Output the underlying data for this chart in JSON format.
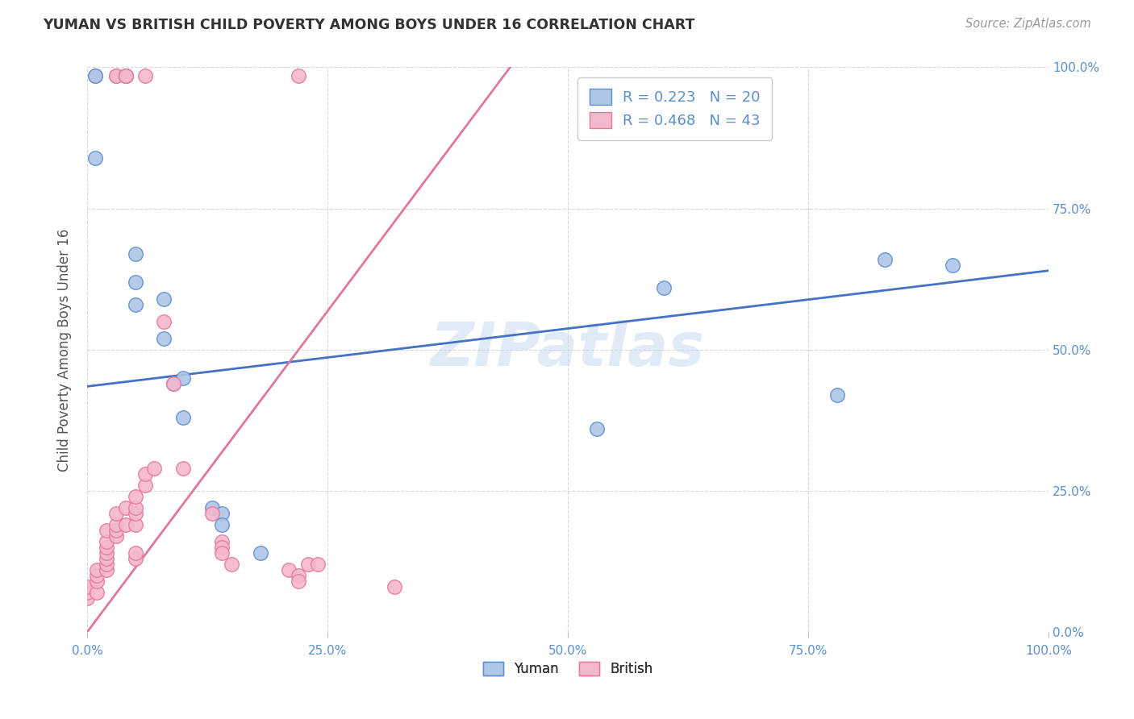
{
  "title": "YUMAN VS BRITISH CHILD POVERTY AMONG BOYS UNDER 16 CORRELATION CHART",
  "source": "Source: ZipAtlas.com",
  "ylabel": "Child Poverty Among Boys Under 16",
  "watermark": "ZIPatlas",
  "yuman_color": "#aec6e8",
  "british_color": "#f4b8cc",
  "yuman_edge_color": "#5b8fcc",
  "british_edge_color": "#e87898",
  "yuman_line_color": "#4472c4",
  "british_line_color": "#e07898",
  "yuman_R": 0.223,
  "yuman_N": 20,
  "british_R": 0.468,
  "british_N": 43,
  "title_color": "#333333",
  "source_color": "#999999",
  "axis_label_color": "#555555",
  "tick_color": "#5b8fcc",
  "grid_color": "#d8d8d8",
  "background_color": "#ffffff",
  "xmin": 0.0,
  "xmax": 1.0,
  "ymin": 0.0,
  "ymax": 1.0,
  "yuman_x": [
    0.008,
    0.05,
    0.05,
    0.05,
    0.08,
    0.08,
    0.09,
    0.1,
    0.1,
    0.13,
    0.14,
    0.14,
    0.18,
    0.53,
    0.6,
    0.78,
    0.83,
    0.9
  ],
  "yuman_y": [
    0.84,
    0.67,
    0.62,
    0.58,
    0.59,
    0.52,
    0.44,
    0.45,
    0.38,
    0.22,
    0.21,
    0.19,
    0.14,
    0.36,
    0.61,
    0.42,
    0.66,
    0.65
  ],
  "british_x": [
    0.0,
    0.0,
    0.0,
    0.01,
    0.01,
    0.01,
    0.01,
    0.02,
    0.02,
    0.02,
    0.02,
    0.02,
    0.02,
    0.02,
    0.03,
    0.03,
    0.03,
    0.03,
    0.04,
    0.04,
    0.05,
    0.05,
    0.05,
    0.05,
    0.05,
    0.05,
    0.06,
    0.06,
    0.07,
    0.08,
    0.09,
    0.1,
    0.13,
    0.14,
    0.14,
    0.14,
    0.15,
    0.21,
    0.22,
    0.22,
    0.23,
    0.24,
    0.32
  ],
  "british_y": [
    0.06,
    0.07,
    0.08,
    0.07,
    0.09,
    0.1,
    0.11,
    0.11,
    0.12,
    0.13,
    0.14,
    0.15,
    0.16,
    0.18,
    0.17,
    0.18,
    0.19,
    0.21,
    0.19,
    0.22,
    0.13,
    0.14,
    0.19,
    0.21,
    0.22,
    0.24,
    0.26,
    0.28,
    0.29,
    0.55,
    0.44,
    0.29,
    0.21,
    0.16,
    0.15,
    0.14,
    0.12,
    0.11,
    0.1,
    0.09,
    0.12,
    0.12,
    0.08
  ],
  "british_top_x": [
    0.008,
    0.03,
    0.03,
    0.04,
    0.04,
    0.04,
    0.04,
    0.04,
    0.06,
    0.22
  ],
  "british_top_y": [
    0.985,
    0.985,
    0.985,
    0.985,
    0.985,
    0.985,
    0.985,
    0.985,
    0.985,
    0.985
  ],
  "yuman_top_x": [
    0.008
  ],
  "yuman_top_y": [
    0.985
  ],
  "yuman_line_x": [
    0.0,
    1.0
  ],
  "yuman_line_y": [
    0.435,
    0.64
  ],
  "british_line_x": [
    0.0,
    0.44
  ],
  "british_line_y": [
    0.0,
    1.0
  ]
}
